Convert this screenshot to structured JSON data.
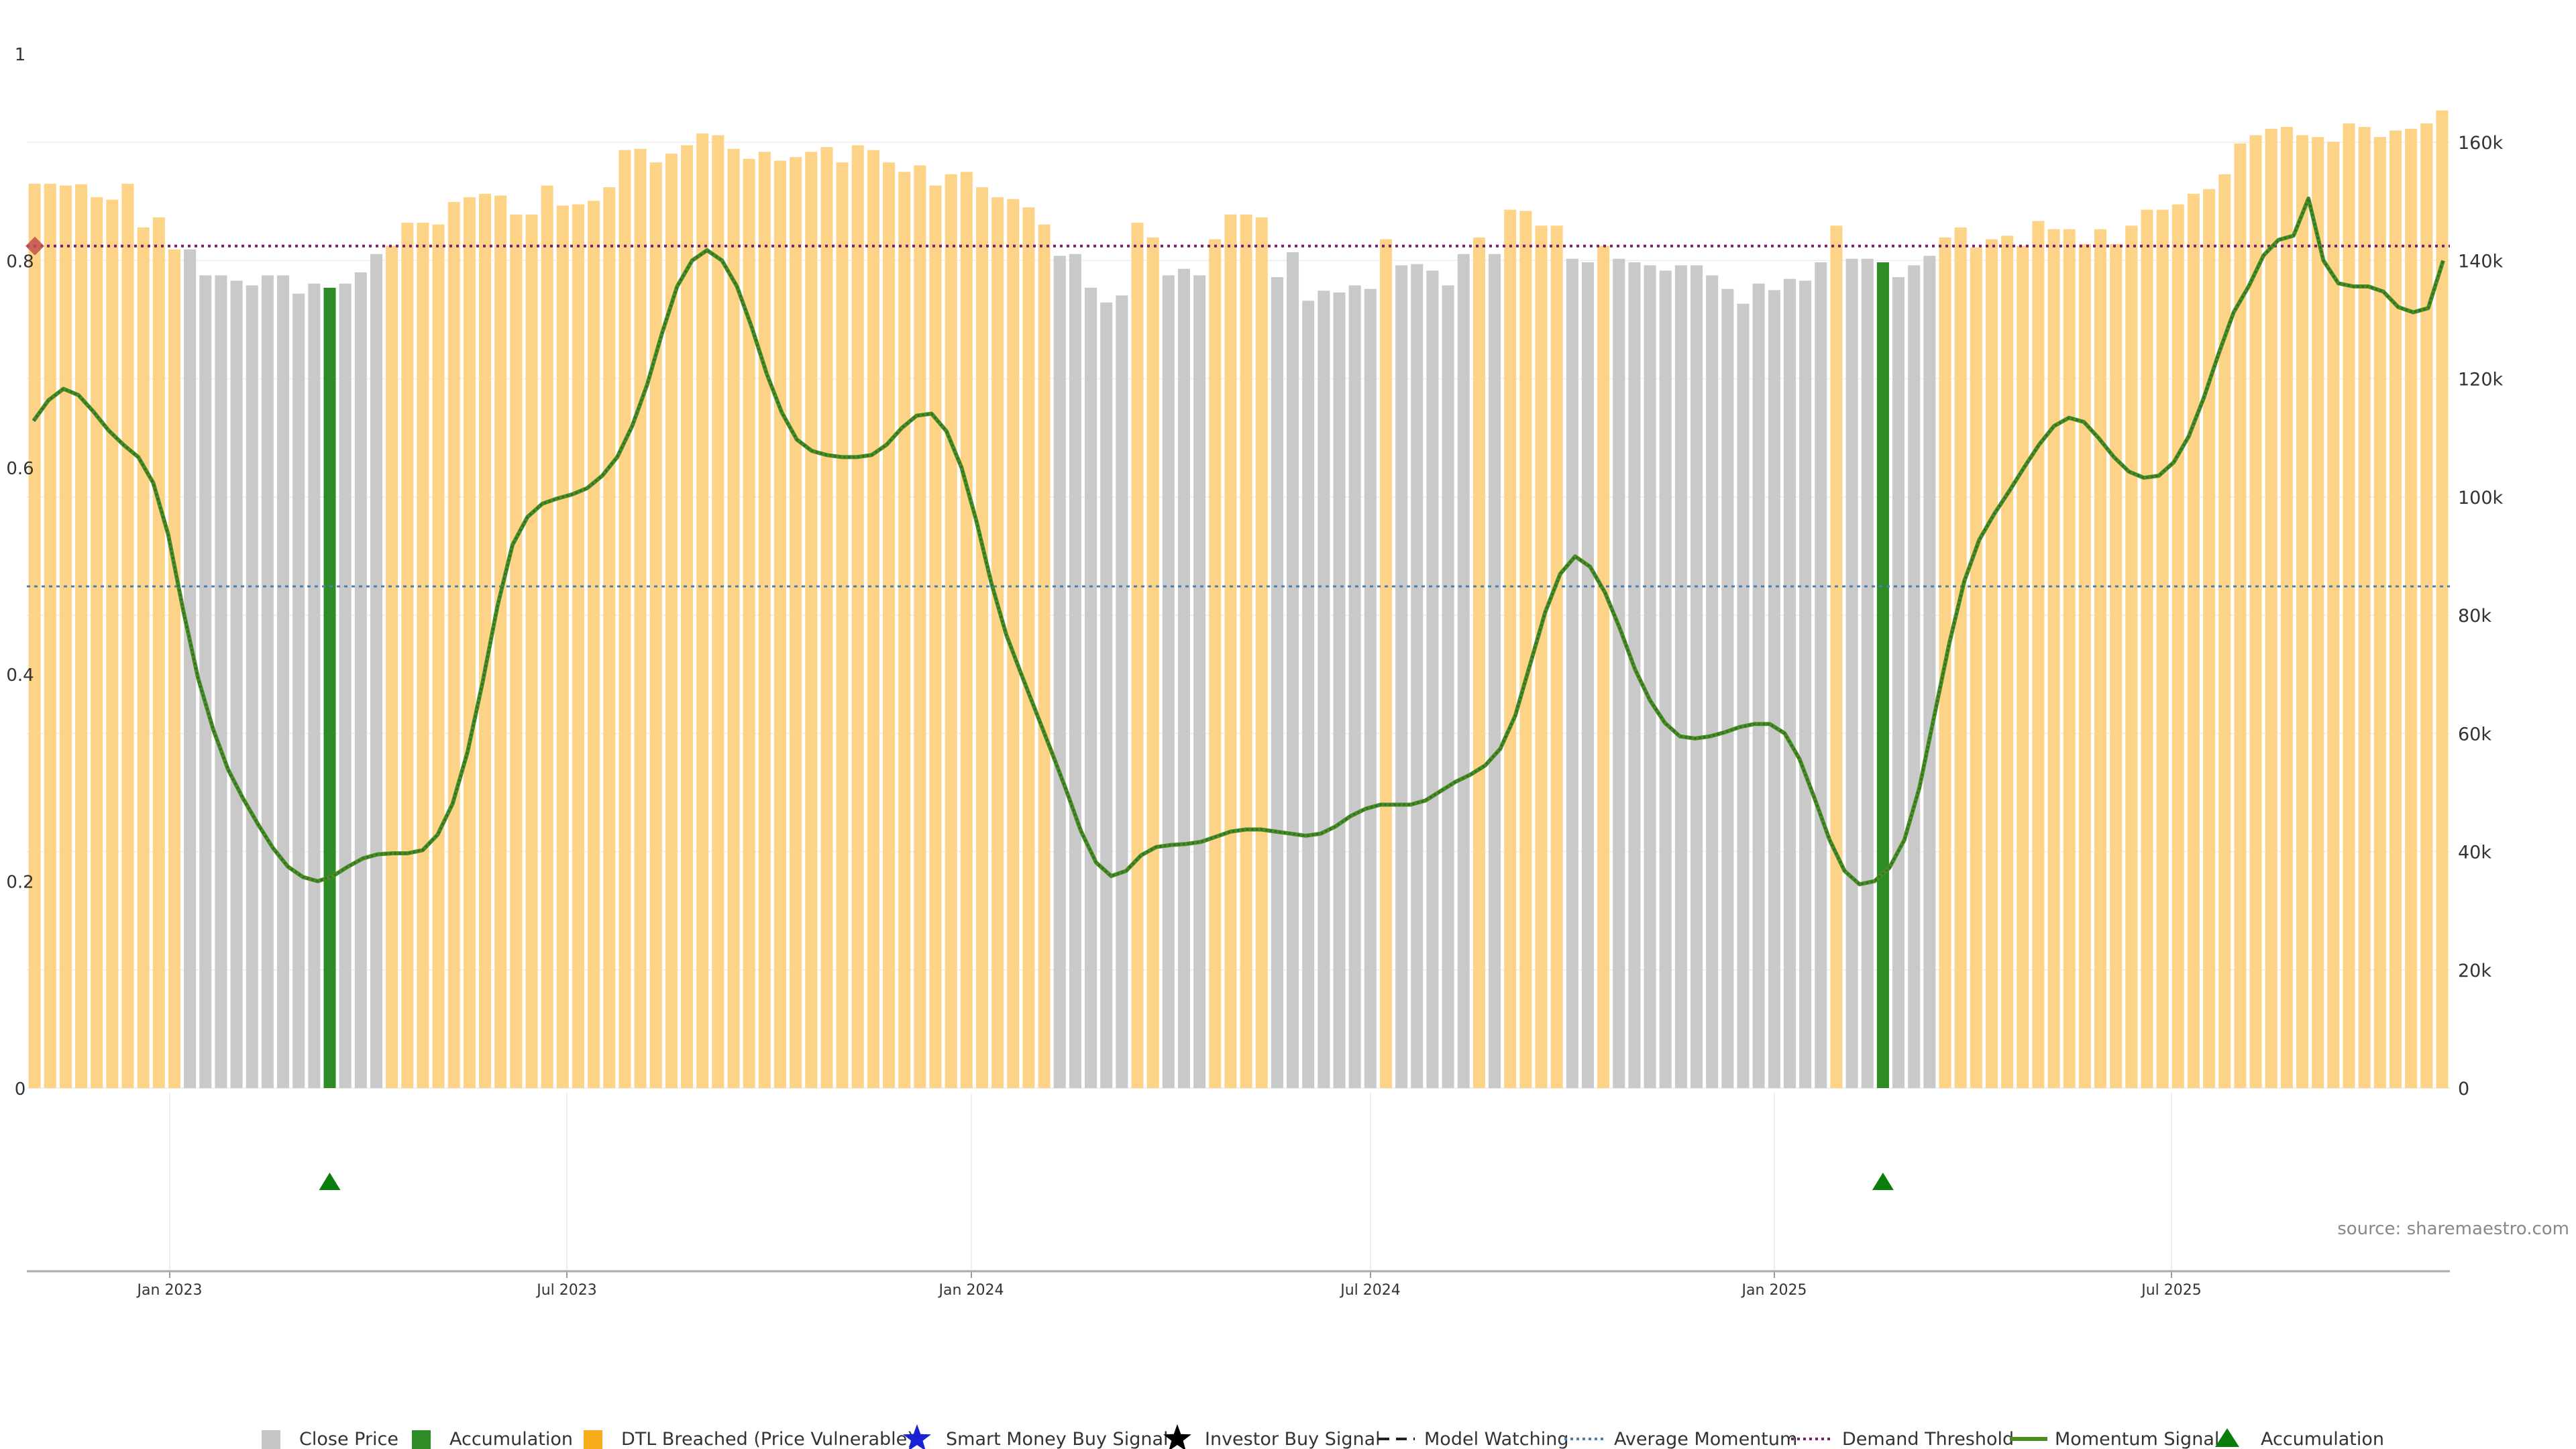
{
  "source": "source: sharemaestro.com",
  "colors": {
    "close": "#c6c6c6",
    "accumulation": "#2e8b26",
    "dtl": "#fcd181",
    "momentum": "#4a8d1f",
    "momentum_dash": "#2f6b3a",
    "demand": "#7a1e6e",
    "average": "#4a7fb0",
    "marker": "#c0504d",
    "triangle": "#0a7d0a"
  },
  "chart_data": {
    "type": "bar",
    "x_ticks": [
      "Jan 2023",
      "Jul 2023",
      "Jan 2024",
      "Jul 2024",
      "Jan 2025",
      "Jul 2025"
    ],
    "y_left": {
      "ticks": [
        "0",
        "0.2",
        "0.4",
        "0.6",
        "0.8",
        "1"
      ],
      "range": [
        0,
        1
      ]
    },
    "y_right": {
      "ticks": [
        "0",
        "20k",
        "40k",
        "60k",
        "80k",
        "100k",
        "120k",
        "140k",
        "160k"
      ],
      "range": [
        0,
        175000
      ]
    },
    "demand_threshold": 0.814,
    "average_momentum": 0.485,
    "price_series": [
      {
        "t": "O",
        "v": 153
      },
      {
        "t": "O",
        "v": 153
      },
      {
        "t": "O",
        "v": 152.7
      },
      {
        "t": "O",
        "v": 152.9
      },
      {
        "t": "O",
        "v": 150.7
      },
      {
        "t": "O",
        "v": 150.3
      },
      {
        "t": "O",
        "v": 153
      },
      {
        "t": "O",
        "v": 145.6
      },
      {
        "t": "O",
        "v": 147.3
      },
      {
        "t": "O",
        "v": 141.9
      },
      {
        "t": "G",
        "v": 141.9
      },
      {
        "t": "G",
        "v": 137.5
      },
      {
        "t": "G",
        "v": 137.5
      },
      {
        "t": "G",
        "v": 136.6
      },
      {
        "t": "G",
        "v": 135.8
      },
      {
        "t": "G",
        "v": 137.5
      },
      {
        "t": "G",
        "v": 137.5
      },
      {
        "t": "G",
        "v": 134.4
      },
      {
        "t": "G",
        "v": 136.1
      },
      {
        "t": "A",
        "v": 135.4
      },
      {
        "t": "G",
        "v": 136.1
      },
      {
        "t": "G",
        "v": 138
      },
      {
        "t": "G",
        "v": 141.1
      },
      {
        "t": "O",
        "v": 142.5
      },
      {
        "t": "O",
        "v": 146.4
      },
      {
        "t": "O",
        "v": 146.4
      },
      {
        "t": "O",
        "v": 146.1
      },
      {
        "t": "O",
        "v": 149.9
      },
      {
        "t": "O",
        "v": 150.7
      },
      {
        "t": "O",
        "v": 151.3
      },
      {
        "t": "O",
        "v": 151
      },
      {
        "t": "O",
        "v": 147.8
      },
      {
        "t": "O",
        "v": 147.8
      },
      {
        "t": "O",
        "v": 152.7
      },
      {
        "t": "O",
        "v": 149.3
      },
      {
        "t": "O",
        "v": 149.5
      },
      {
        "t": "O",
        "v": 150.1
      },
      {
        "t": "O",
        "v": 152.4
      },
      {
        "t": "O",
        "v": 158.7
      },
      {
        "t": "O",
        "v": 158.9
      },
      {
        "t": "O",
        "v": 156.6
      },
      {
        "t": "O",
        "v": 158.1
      },
      {
        "t": "O",
        "v": 159.5
      },
      {
        "t": "O",
        "v": 161.5
      },
      {
        "t": "O",
        "v": 161.2
      },
      {
        "t": "O",
        "v": 158.9
      },
      {
        "t": "O",
        "v": 157.2
      },
      {
        "t": "O",
        "v": 158.4
      },
      {
        "t": "O",
        "v": 156.9
      },
      {
        "t": "O",
        "v": 157.5
      },
      {
        "t": "O",
        "v": 158.4
      },
      {
        "t": "O",
        "v": 159.2
      },
      {
        "t": "O",
        "v": 156.6
      },
      {
        "t": "O",
        "v": 159.5
      },
      {
        "t": "O",
        "v": 158.7
      },
      {
        "t": "O",
        "v": 156.6
      },
      {
        "t": "O",
        "v": 155
      },
      {
        "t": "O",
        "v": 156.1
      },
      {
        "t": "O",
        "v": 152.7
      },
      {
        "t": "O",
        "v": 154.6
      },
      {
        "t": "O",
        "v": 155
      },
      {
        "t": "O",
        "v": 152.4
      },
      {
        "t": "O",
        "v": 150.7
      },
      {
        "t": "O",
        "v": 150.4
      },
      {
        "t": "O",
        "v": 149
      },
      {
        "t": "O",
        "v": 146.1
      },
      {
        "t": "G",
        "v": 140.8
      },
      {
        "t": "G",
        "v": 141.1
      },
      {
        "t": "G",
        "v": 135.4
      },
      {
        "t": "G",
        "v": 132.9
      },
      {
        "t": "G",
        "v": 134.1
      },
      {
        "t": "O",
        "v": 146.4
      },
      {
        "t": "O",
        "v": 143.9
      },
      {
        "t": "G",
        "v": 137.5
      },
      {
        "t": "G",
        "v": 138.6
      },
      {
        "t": "G",
        "v": 137.5
      },
      {
        "t": "O",
        "v": 143.6
      },
      {
        "t": "O",
        "v": 147.8
      },
      {
        "t": "O",
        "v": 147.8
      },
      {
        "t": "O",
        "v": 147.3
      },
      {
        "t": "G",
        "v": 137.2
      },
      {
        "t": "G",
        "v": 141.4
      },
      {
        "t": "G",
        "v": 133.2
      },
      {
        "t": "G",
        "v": 134.9
      },
      {
        "t": "G",
        "v": 134.6
      },
      {
        "t": "G",
        "v": 135.8
      },
      {
        "t": "G",
        "v": 135.2
      },
      {
        "t": "O",
        "v": 143.6
      },
      {
        "t": "G",
        "v": 139.2
      },
      {
        "t": "G",
        "v": 139.4
      },
      {
        "t": "G",
        "v": 138.3
      },
      {
        "t": "G",
        "v": 135.8
      },
      {
        "t": "G",
        "v": 141.1
      },
      {
        "t": "O",
        "v": 143.9
      },
      {
        "t": "G",
        "v": 141.1
      },
      {
        "t": "O",
        "v": 148.6
      },
      {
        "t": "O",
        "v": 148.4
      },
      {
        "t": "O",
        "v": 145.9
      },
      {
        "t": "O",
        "v": 145.9
      },
      {
        "t": "G",
        "v": 140.3
      },
      {
        "t": "G",
        "v": 139.7
      },
      {
        "t": "O",
        "v": 142.5
      },
      {
        "t": "G",
        "v": 140.3
      },
      {
        "t": "G",
        "v": 139.7
      },
      {
        "t": "G",
        "v": 139.2
      },
      {
        "t": "G",
        "v": 138.3
      },
      {
        "t": "G",
        "v": 139.2
      },
      {
        "t": "G",
        "v": 139.2
      },
      {
        "t": "G",
        "v": 137.5
      },
      {
        "t": "G",
        "v": 135.2
      },
      {
        "t": "G",
        "v": 132.7
      },
      {
        "t": "G",
        "v": 136.1
      },
      {
        "t": "G",
        "v": 135
      },
      {
        "t": "G",
        "v": 136.9
      },
      {
        "t": "G",
        "v": 136.6
      },
      {
        "t": "G",
        "v": 139.7
      },
      {
        "t": "O",
        "v": 145.9
      },
      {
        "t": "G",
        "v": 140.3
      },
      {
        "t": "G",
        "v": 140.3
      },
      {
        "t": "A",
        "v": 139.7
      },
      {
        "t": "G",
        "v": 137.2
      },
      {
        "t": "G",
        "v": 139.2
      },
      {
        "t": "G",
        "v": 140.8
      },
      {
        "t": "O",
        "v": 143.9
      },
      {
        "t": "O",
        "v": 145.6
      },
      {
        "t": "O",
        "v": 142.2
      },
      {
        "t": "O",
        "v": 143.6
      },
      {
        "t": "O",
        "v": 144.2
      },
      {
        "t": "O",
        "v": 142.5
      },
      {
        "t": "O",
        "v": 146.7
      },
      {
        "t": "O",
        "v": 145.3
      },
      {
        "t": "O",
        "v": 145.3
      },
      {
        "t": "O",
        "v": 142.8
      },
      {
        "t": "O",
        "v": 145.3
      },
      {
        "t": "O",
        "v": 142.8
      },
      {
        "t": "O",
        "v": 145.9
      },
      {
        "t": "O",
        "v": 148.6
      },
      {
        "t": "O",
        "v": 148.6
      },
      {
        "t": "O",
        "v": 149.5
      },
      {
        "t": "O",
        "v": 151.3
      },
      {
        "t": "O",
        "v": 152.1
      },
      {
        "t": "O",
        "v": 154.6
      },
      {
        "t": "O",
        "v": 159.8
      },
      {
        "t": "O",
        "v": 161.2
      },
      {
        "t": "O",
        "v": 162.3
      },
      {
        "t": "O",
        "v": 162.6
      },
      {
        "t": "O",
        "v": 161.2
      },
      {
        "t": "O",
        "v": 160.9
      },
      {
        "t": "O",
        "v": 160.1
      },
      {
        "t": "O",
        "v": 163.2
      },
      {
        "t": "O",
        "v": 162.6
      },
      {
        "t": "O",
        "v": 160.9
      },
      {
        "t": "O",
        "v": 162
      },
      {
        "t": "O",
        "v": 162.3
      },
      {
        "t": "O",
        "v": 163.2
      },
      {
        "t": "O",
        "v": 165.4
      }
    ],
    "momentum_series": [
      0.645,
      0.665,
      0.676,
      0.67,
      0.654,
      0.636,
      0.622,
      0.61,
      0.585,
      0.535,
      0.462,
      0.396,
      0.347,
      0.308,
      0.28,
      0.255,
      0.232,
      0.214,
      0.204,
      0.2,
      0.205,
      0.214,
      0.222,
      0.226,
      0.227,
      0.227,
      0.23,
      0.245,
      0.275,
      0.325,
      0.392,
      0.466,
      0.525,
      0.552,
      0.565,
      0.57,
      0.574,
      0.58,
      0.592,
      0.61,
      0.64,
      0.68,
      0.73,
      0.775,
      0.8,
      0.81,
      0.8,
      0.775,
      0.735,
      0.69,
      0.653,
      0.627,
      0.616,
      0.612,
      0.61,
      0.61,
      0.612,
      0.622,
      0.638,
      0.65,
      0.652,
      0.635,
      0.6,
      0.548,
      0.488,
      0.438,
      0.4,
      0.363,
      0.326,
      0.288,
      0.248,
      0.218,
      0.205,
      0.21,
      0.225,
      0.233,
      0.235,
      0.236,
      0.238,
      0.243,
      0.248,
      0.25,
      0.25,
      0.248,
      0.246,
      0.244,
      0.246,
      0.253,
      0.263,
      0.27,
      0.274,
      0.274,
      0.274,
      0.278,
      0.287,
      0.296,
      0.303,
      0.312,
      0.328,
      0.36,
      0.41,
      0.46,
      0.497,
      0.514,
      0.504,
      0.479,
      0.444,
      0.405,
      0.375,
      0.353,
      0.34,
      0.338,
      0.34,
      0.344,
      0.349,
      0.352,
      0.352,
      0.343,
      0.318,
      0.28,
      0.24,
      0.21,
      0.197,
      0.2,
      0.213,
      0.24,
      0.29,
      0.36,
      0.43,
      0.49,
      0.53,
      0.555,
      0.577,
      0.6,
      0.622,
      0.64,
      0.648,
      0.644,
      0.628,
      0.61,
      0.596,
      0.59,
      0.592,
      0.605,
      0.63,
      0.667,
      0.71,
      0.75,
      0.775,
      0.805,
      0.82,
      0.824,
      0.86,
      0.8,
      0.778,
      0.775,
      0.775,
      0.77,
      0.755,
      0.75,
      0.754,
      0.8
    ],
    "accumulation_events": [
      19,
      119
    ],
    "legend": [
      "Close Price",
      "Accumulation",
      "DTL Breached (Price Vulnerable)",
      "Smart Money Buy Signal",
      "Investor Buy Signal",
      "Model Watching",
      "Average Momentum",
      "Demand Threshold",
      "Momentum Signal",
      "Accumulation"
    ],
    "legend_placement": "bottom"
  }
}
